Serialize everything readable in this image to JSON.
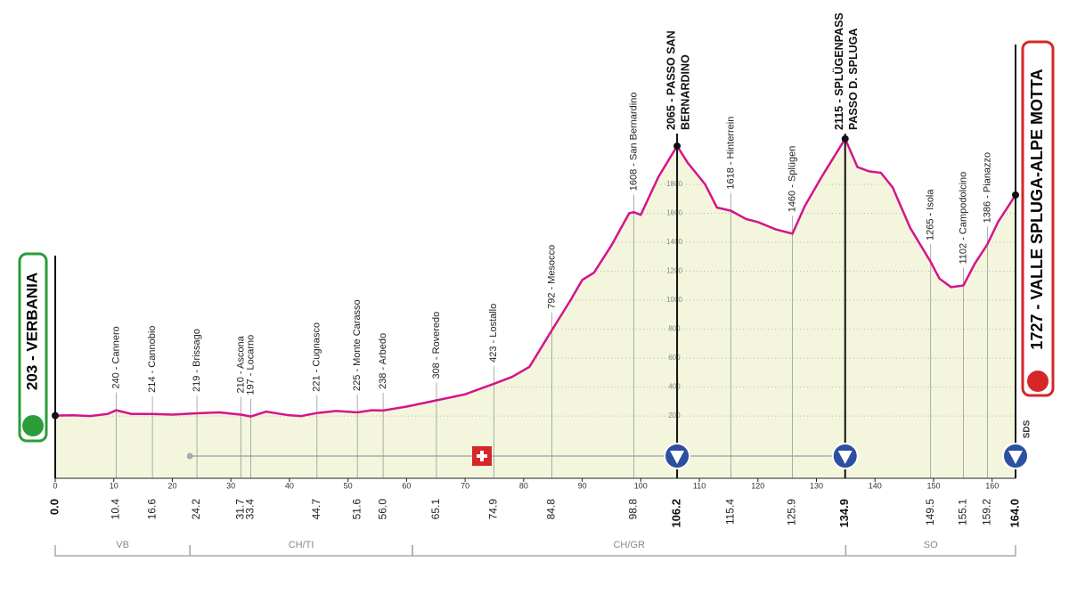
{
  "chart_data": {
    "type": "area",
    "line_color": "#d4148c",
    "fill_color": "#f3f6dd",
    "x": [
      0,
      3,
      6,
      9,
      10.4,
      13,
      16.6,
      20,
      24.2,
      28,
      31.7,
      33.4,
      36,
      40,
      42,
      44.7,
      48,
      51.6,
      54,
      56,
      60,
      65.1,
      70,
      74.9,
      78,
      81,
      84.8,
      88,
      90,
      92,
      95,
      98,
      98.8,
      100,
      103,
      106.2,
      108,
      111,
      113,
      115.4,
      118,
      120,
      123,
      125.9,
      128,
      131,
      134.9,
      137,
      139,
      141,
      143,
      146,
      149.5,
      151,
      153,
      155.1,
      157,
      159.2,
      161,
      164
    ],
    "values": [
      203,
      205,
      200,
      215,
      240,
      215,
      214,
      210,
      219,
      225,
      210,
      197,
      230,
      205,
      200,
      221,
      235,
      225,
      240,
      238,
      265,
      308,
      350,
      423,
      470,
      540,
      792,
      1000,
      1140,
      1190,
      1380,
      1600,
      1608,
      1590,
      1850,
      2065,
      1950,
      1800,
      1640,
      1618,
      1560,
      1540,
      1490,
      1460,
      1650,
      1860,
      2115,
      1920,
      1890,
      1880,
      1780,
      1500,
      1265,
      1150,
      1090,
      1102,
      1250,
      1386,
      1540,
      1727
    ],
    "xlim": [
      0,
      164
    ],
    "xticks": [
      0,
      10,
      20,
      30,
      40,
      50,
      60,
      70,
      80,
      90,
      100,
      110,
      120,
      130,
      140,
      150,
      160
    ],
    "ylim": [
      -230,
      2200
    ],
    "yticks": [
      200,
      400,
      600,
      800,
      1000,
      1200,
      1400,
      1600,
      1800
    ],
    "grid": true,
    "start": {
      "km": {
        "value": 0,
        "label": "0.0"
      },
      "label": "203 - VERBANIA"
    },
    "finish": {
      "km": {
        "value": 164,
        "label": "164.0"
      },
      "label": "1727 - VALLE SPLUGA-ALPE MOTTA"
    },
    "climbs": [
      {
        "km": 106.2,
        "label": [
          "2065 - PASSO SAN",
          "BERNARDINO"
        ]
      },
      {
        "km": 134.9,
        "label": [
          "2115 - SPLÜGENPASS",
          "PASSO D. SPLUGA"
        ]
      }
    ],
    "waypoints": [
      {
        "km": 10.4,
        "label": "240 - Cannero"
      },
      {
        "km": 16.6,
        "label": "214 - Cannobio"
      },
      {
        "km": 24.2,
        "label": "219 - Brissago"
      },
      {
        "km": 31.7,
        "label": "210 - Ascona"
      },
      {
        "km": 33.4,
        "label": "197 - Locarno"
      },
      {
        "km": 44.7,
        "label": "221 - Cugnasco"
      },
      {
        "km": 51.6,
        "label": "225 - Monte Carasso"
      },
      {
        "km": {
          "value": 56,
          "label": "56.0"
        },
        "label": "238 - Arbedo"
      },
      {
        "km": 65.1,
        "label": "308 - Roveredo"
      },
      {
        "km": 74.9,
        "label": "423 - Lostallo"
      },
      {
        "km": 84.8,
        "label": "792 - Mesocco"
      },
      {
        "km": 98.8,
        "label": "1608 - San Bernardino"
      },
      {
        "km": 115.4,
        "label": "1618 - Hinterrein"
      },
      {
        "km": 125.9,
        "label": "1460 - Splügen"
      },
      {
        "km": 149.5,
        "label": "1265 - Isola"
      },
      {
        "km": 155.1,
        "label": "1102 - Campodolcino"
      },
      {
        "km": 159.2,
        "label": "1386 - Pianazzo"
      }
    ],
    "regions": [
      {
        "name": "VB",
        "from": 0,
        "to": 23
      },
      {
        "name": "CH/TI",
        "from": 23,
        "to": 61
      },
      {
        "name": "CH/GR",
        "from": 61,
        "to": 135
      },
      {
        "name": "SO",
        "from": 135,
        "to": 164
      }
    ],
    "logo": "SDS"
  }
}
